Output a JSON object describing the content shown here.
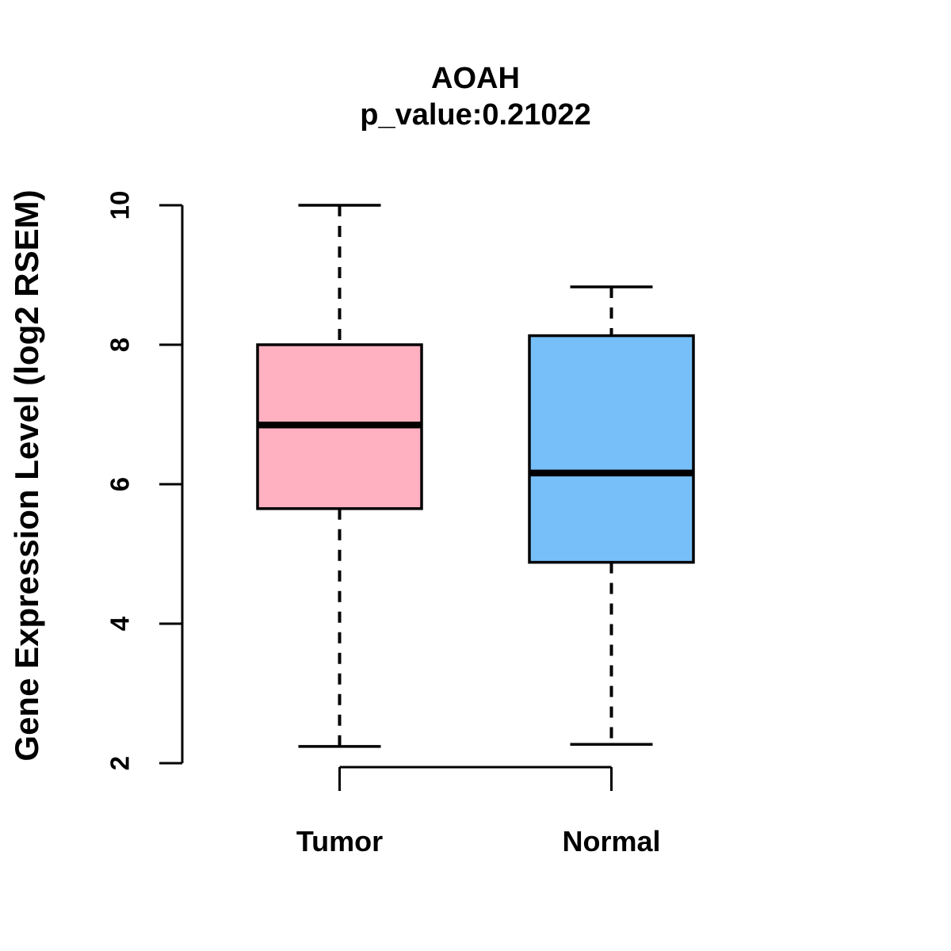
{
  "chart_data": {
    "type": "boxplot",
    "title": "AOAH",
    "subtitle": "p_value:0.21022",
    "ylabel": "Gene Expression Level (log2 RSEM)",
    "xlabel": "",
    "ylim": [
      2,
      10
    ],
    "yticks": [
      2,
      4,
      6,
      8,
      10
    ],
    "categories": [
      "Tumor",
      "Normal"
    ],
    "series": [
      {
        "name": "Tumor",
        "whisker_low": 2.24,
        "q1": 5.65,
        "median": 6.85,
        "q3": 8.0,
        "whisker_high": 10.0,
        "color": "#FFB1C1"
      },
      {
        "name": "Normal",
        "whisker_low": 2.27,
        "q1": 4.88,
        "median": 6.16,
        "q3": 8.13,
        "whisker_high": 8.83,
        "color": "#77BFF8"
      }
    ],
    "grid": false,
    "legend_position": "none",
    "colors": {
      "box_border": "#000000",
      "axis": "#000000",
      "text": "#000000",
      "background": "#FFFFFF"
    }
  }
}
